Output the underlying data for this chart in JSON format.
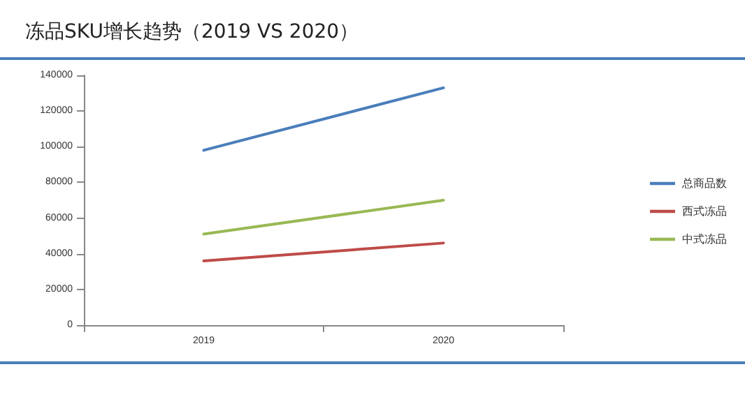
{
  "chart_data": {
    "type": "line",
    "title": "冻品SKU增长趋势（2019 VS 2020）",
    "categories": [
      "2019",
      "2020"
    ],
    "series": [
      {
        "name": "总商品数",
        "color": "#4a7ebb",
        "values": [
          98000,
          133000
        ]
      },
      {
        "name": "西式冻品",
        "color": "#be4b48",
        "values": [
          36000,
          46000
        ]
      },
      {
        "name": "中式冻品",
        "color": "#98b954",
        "values": [
          51000,
          70000
        ]
      }
    ],
    "ylim": [
      0,
      140000
    ],
    "yticks": [
      0,
      20000,
      40000,
      60000,
      80000,
      100000,
      120000,
      140000
    ],
    "grid": false,
    "legend": "right",
    "marker": "none",
    "line_style": "solid"
  }
}
